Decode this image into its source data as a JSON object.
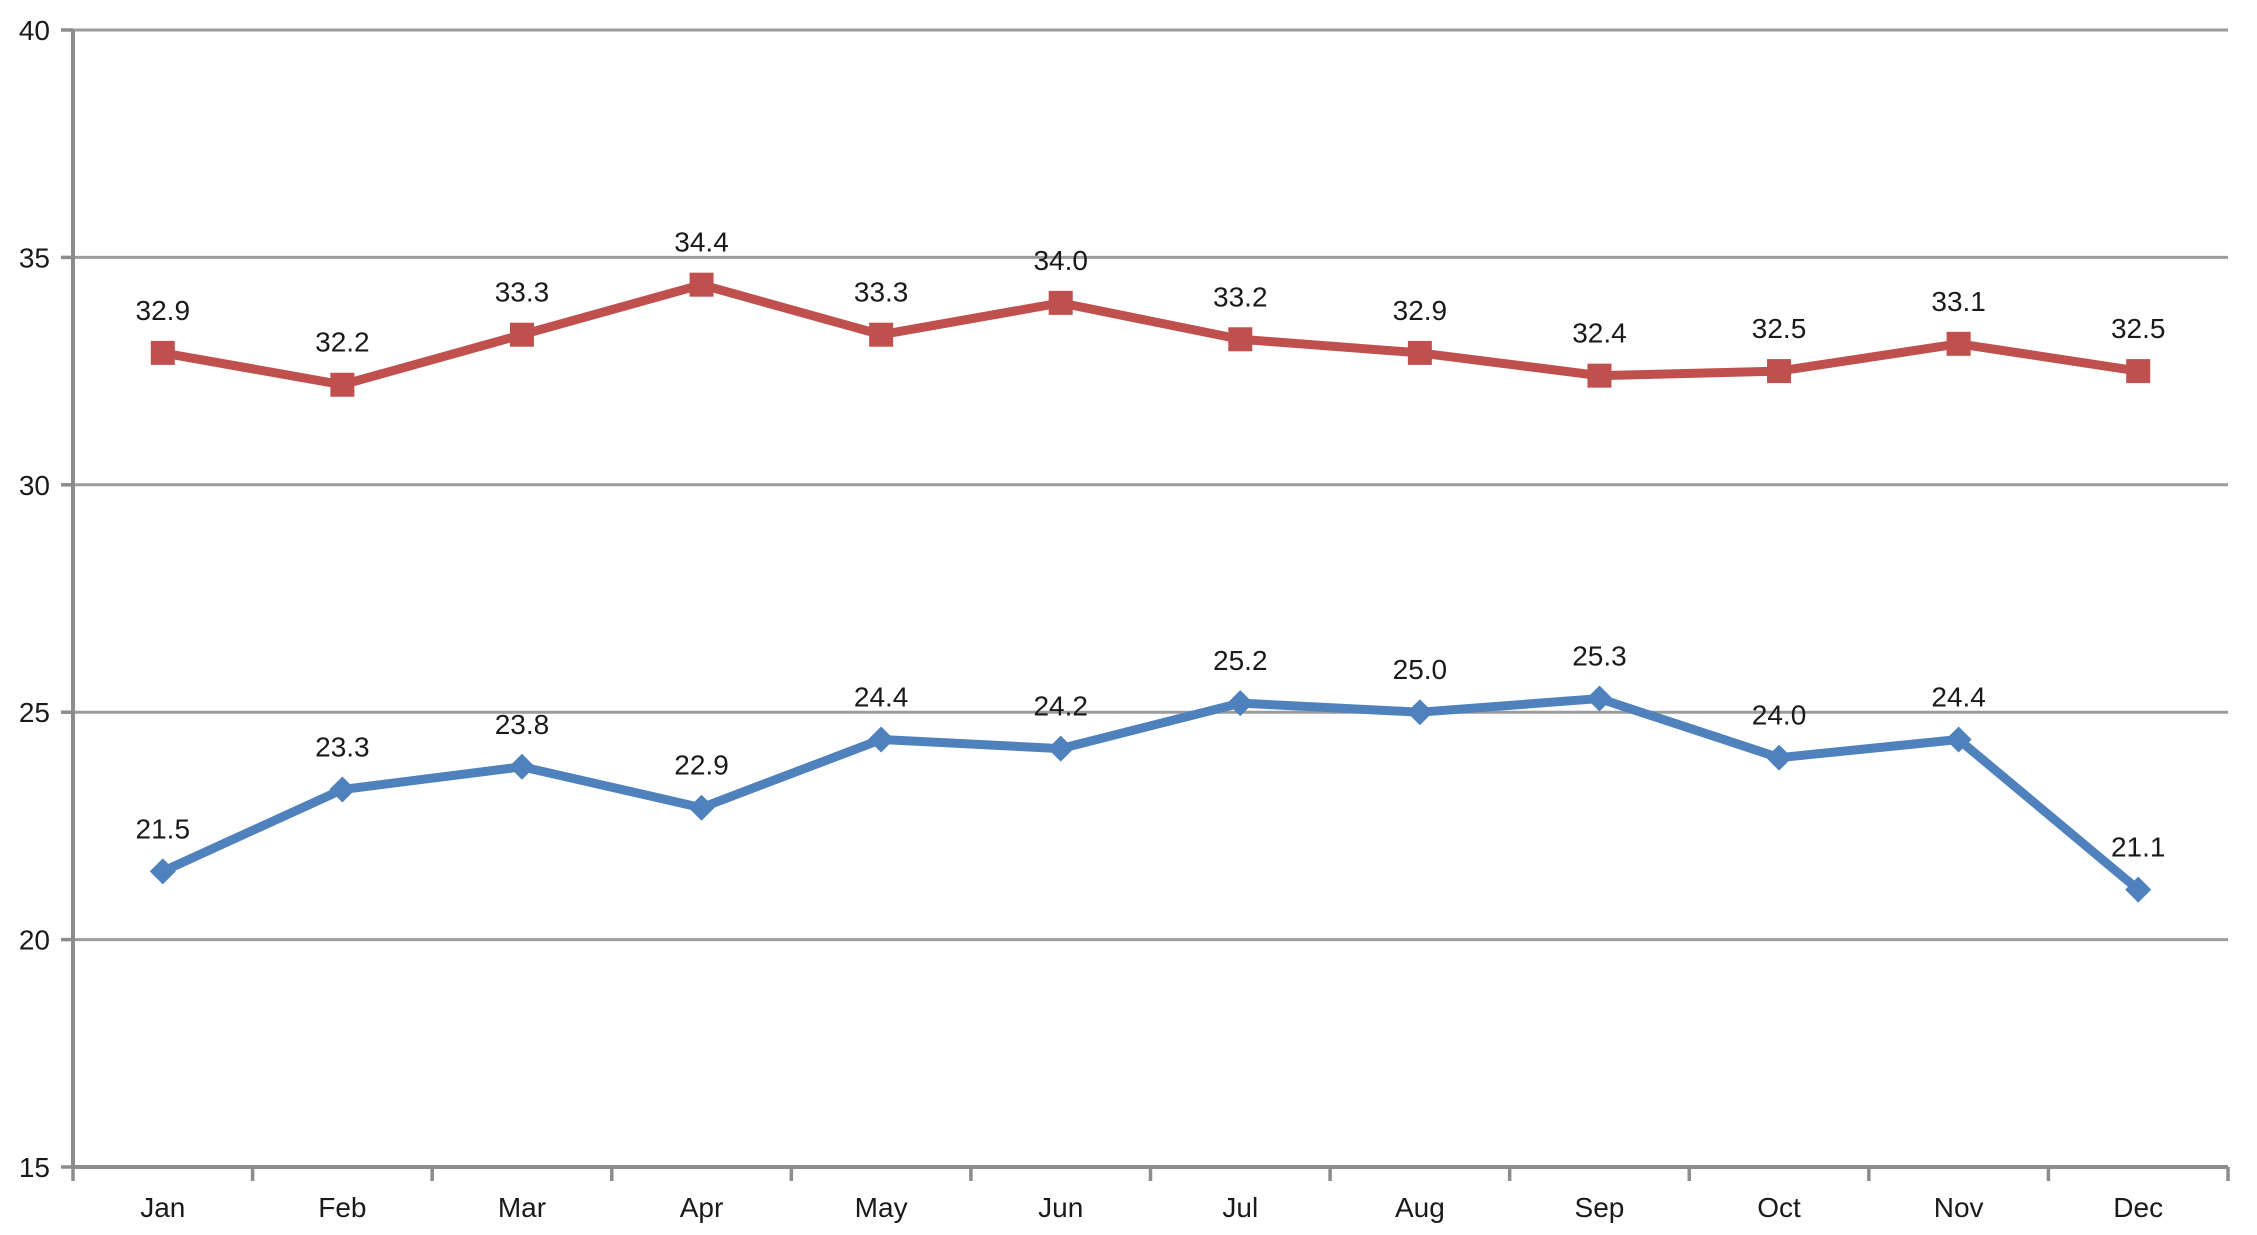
{
  "chart_data": {
    "type": "line",
    "title": "",
    "xlabel": "",
    "ylabel": "",
    "categories": [
      "Jan",
      "Feb",
      "Mar",
      "Apr",
      "May",
      "Jun",
      "Jul",
      "Aug",
      "Sep",
      "Oct",
      "Nov",
      "Dec"
    ],
    "series": [
      {
        "name": "red-series",
        "color": "#C0504D",
        "marker": "square",
        "values": [
          32.9,
          32.2,
          33.3,
          34.4,
          33.3,
          34.0,
          33.2,
          32.9,
          32.4,
          32.5,
          33.1,
          32.5
        ],
        "labels": [
          "32.9",
          "32.2",
          "33.3",
          "34.4",
          "33.3",
          "34.0",
          "33.2",
          "32.9",
          "32.4",
          "32.5",
          "33.1",
          "32.5"
        ]
      },
      {
        "name": "blue-series",
        "color": "#4F81BD",
        "marker": "diamond",
        "values": [
          21.5,
          23.3,
          23.8,
          22.9,
          24.4,
          24.2,
          25.2,
          25.0,
          25.3,
          24.0,
          24.4,
          21.1
        ],
        "labels": [
          "21.5",
          "23.3",
          "23.8",
          "22.9",
          "24.4",
          "24.2",
          "25.2",
          "25.0",
          "25.3",
          "24.0",
          "24.4",
          "21.1"
        ]
      }
    ],
    "ylim": [
      15,
      40
    ],
    "yticks": [
      15,
      20,
      25,
      30,
      35,
      40
    ],
    "ytick_labels": [
      "15",
      "20",
      "25",
      "30",
      "35",
      "40"
    ],
    "grid": true,
    "legend": "none",
    "data_labels": true,
    "colors": {
      "grid": "#9C9C9C",
      "axis": "#8C8C8C",
      "text": "#1a1a1a",
      "background": "#FFFFFF"
    }
  }
}
